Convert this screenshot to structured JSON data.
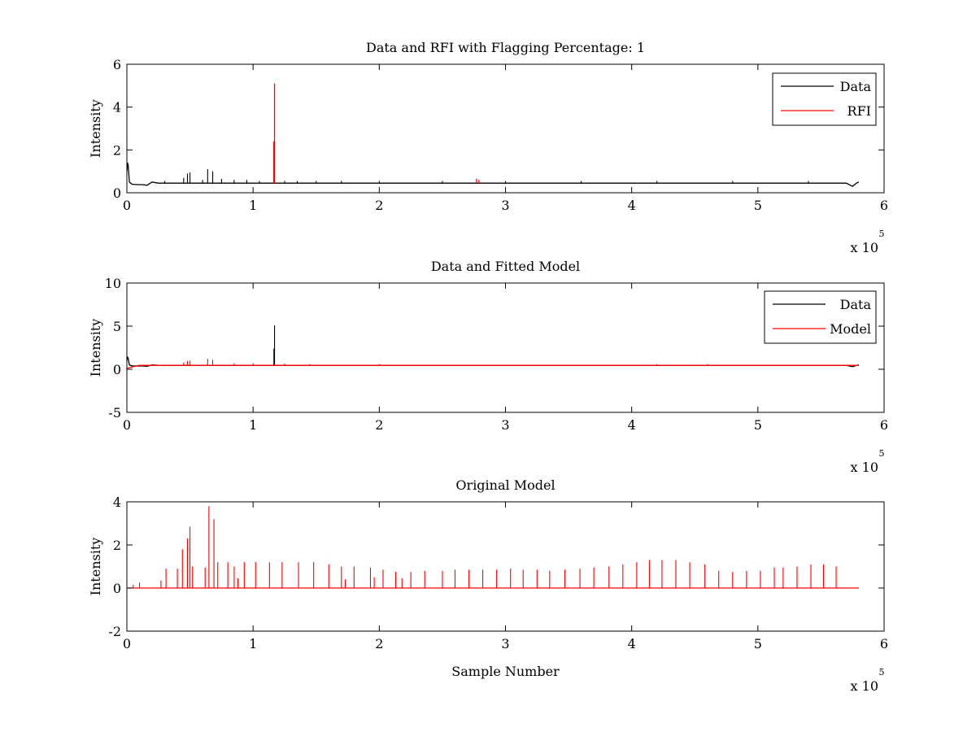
{
  "chart_data": [
    {
      "type": "line",
      "title": "Data and RFI with Flagging Percentage: 1",
      "xlabel": "",
      "ylabel": "Intensity",
      "x_exponent_base": "x 10",
      "x_exponent": "5",
      "xlim": [
        0,
        6
      ],
      "ylim": [
        0,
        6
      ],
      "xticks": [
        "0",
        "1",
        "2",
        "3",
        "4",
        "5",
        "6"
      ],
      "yticks": [
        "0",
        "2",
        "4",
        "6"
      ],
      "grid": false,
      "legend_position": "top-right",
      "series": [
        {
          "name": "Data",
          "color": "#000000",
          "baseline": 0.45,
          "x": [
            0,
            0.005,
            0.01,
            0.015,
            0.02,
            0.04,
            0.08,
            0.12,
            0.16,
            0.2,
            0.25,
            0.3,
            5.7,
            5.75,
            5.78,
            5.8
          ],
          "y": [
            1.0,
            1.4,
            1.3,
            0.9,
            0.5,
            0.4,
            0.38,
            0.38,
            0.35,
            0.5,
            0.45,
            0.45,
            0.45,
            0.3,
            0.45,
            0.5
          ],
          "spikes": [
            {
              "x": 0.3,
              "y": 0.55
            },
            {
              "x": 0.45,
              "y": 0.7
            },
            {
              "x": 0.48,
              "y": 0.9
            },
            {
              "x": 0.5,
              "y": 0.95
            },
            {
              "x": 0.6,
              "y": 0.6
            },
            {
              "x": 0.64,
              "y": 1.1
            },
            {
              "x": 0.68,
              "y": 1.0
            },
            {
              "x": 0.75,
              "y": 0.65
            },
            {
              "x": 0.85,
              "y": 0.6
            },
            {
              "x": 0.95,
              "y": 0.6
            },
            {
              "x": 1.05,
              "y": 0.55
            },
            {
              "x": 1.25,
              "y": 0.55
            },
            {
              "x": 1.35,
              "y": 0.55
            },
            {
              "x": 1.5,
              "y": 0.55
            },
            {
              "x": 1.7,
              "y": 0.55
            },
            {
              "x": 2.0,
              "y": 0.55
            },
            {
              "x": 2.5,
              "y": 0.55
            },
            {
              "x": 3.0,
              "y": 0.55
            },
            {
              "x": 3.6,
              "y": 0.55
            },
            {
              "x": 4.2,
              "y": 0.55
            },
            {
              "x": 4.8,
              "y": 0.55
            },
            {
              "x": 5.4,
              "y": 0.55
            }
          ]
        },
        {
          "name": "RFI",
          "color": "#ff0000",
          "bars": [
            {
              "x": 1.165,
              "width": 0.01,
              "y": 2.4
            },
            {
              "x": 1.17,
              "y": 5.1
            },
            {
              "x": 2.77,
              "y": 0.65
            },
            {
              "x": 2.79,
              "y": 0.6
            }
          ]
        }
      ]
    },
    {
      "type": "line",
      "title": "Data and Fitted Model",
      "xlabel": "",
      "ylabel": "Intensity",
      "x_exponent_base": "x 10",
      "x_exponent": "5",
      "xlim": [
        0,
        6
      ],
      "ylim": [
        -5,
        10
      ],
      "xticks": [
        "0",
        "1",
        "2",
        "3",
        "4",
        "5",
        "6"
      ],
      "yticks": [
        "-5",
        "0",
        "5",
        "10"
      ],
      "grid": false,
      "legend_position": "top-right",
      "series": [
        {
          "name": "Data",
          "color": "#000000",
          "baseline": 0.45,
          "x": [
            0,
            0.005,
            0.01,
            0.015,
            0.02,
            0.04,
            0.08,
            0.12,
            0.16,
            0.2,
            0.25,
            0.3,
            5.7,
            5.75,
            5.78,
            5.8
          ],
          "y": [
            1.0,
            1.4,
            1.3,
            0.9,
            0.5,
            0.4,
            0.38,
            0.38,
            0.35,
            0.5,
            0.45,
            0.45,
            0.45,
            0.3,
            0.45,
            0.5
          ],
          "spikes": [
            {
              "x": 1.165,
              "y": 2.4
            },
            {
              "x": 1.17,
              "y": 5.1
            }
          ]
        },
        {
          "name": "Model",
          "color": "#ff0000",
          "baseline": 0.45,
          "x": [
            0,
            0.05,
            0.1,
            5.8
          ],
          "y": [
            0.1,
            0.3,
            0.45,
            0.45
          ],
          "spikes": [
            {
              "x": 0.45,
              "y": 0.8
            },
            {
              "x": 0.48,
              "y": 0.95
            },
            {
              "x": 0.5,
              "y": 1.0
            },
            {
              "x": 0.64,
              "y": 1.2
            },
            {
              "x": 0.68,
              "y": 1.1
            },
            {
              "x": 0.85,
              "y": 0.7
            },
            {
              "x": 1.0,
              "y": 0.7
            },
            {
              "x": 1.25,
              "y": 0.65
            },
            {
              "x": 1.45,
              "y": 0.6
            },
            {
              "x": 2.0,
              "y": 0.6
            },
            {
              "x": 4.2,
              "y": 0.6
            },
            {
              "x": 4.6,
              "y": 0.6
            }
          ]
        }
      ]
    },
    {
      "type": "line",
      "title": "Original Model",
      "xlabel": "Sample Number",
      "ylabel": "Intensity",
      "x_exponent_base": "x 10",
      "x_exponent": "5",
      "xlim": [
        0,
        6
      ],
      "ylim": [
        -2,
        4
      ],
      "xticks": [
        "0",
        "1",
        "2",
        "3",
        "4",
        "5",
        "6"
      ],
      "yticks": [
        "-2",
        "0",
        "2",
        "4"
      ],
      "grid": false,
      "legend_position": "none",
      "series": [
        {
          "name": "",
          "color": "#ff0000",
          "baseline": 0,
          "x": [
            0,
            5.8
          ],
          "y": [
            0,
            0
          ],
          "spikes": [
            {
              "x": 0.05,
              "y": 0.15
            },
            {
              "x": 0.1,
              "y": 0.25
            },
            {
              "x": 0.27,
              "y": 0.35
            },
            {
              "x": 0.31,
              "y": 0.9
            },
            {
              "x": 0.4,
              "y": 0.9
            },
            {
              "x": 0.44,
              "y": 1.8
            },
            {
              "x": 0.48,
              "y": 2.3
            },
            {
              "x": 0.5,
              "y": 2.85
            },
            {
              "x": 0.52,
              "y": 1.0
            },
            {
              "x": 0.62,
              "y": 0.95
            },
            {
              "x": 0.65,
              "y": 3.8
            },
            {
              "x": 0.69,
              "y": 3.2
            },
            {
              "x": 0.72,
              "y": 1.2
            },
            {
              "x": 0.8,
              "y": 1.2
            },
            {
              "x": 0.85,
              "y": 1.0
            },
            {
              "x": 0.88,
              "y": 0.45
            },
            {
              "x": 0.93,
              "y": 1.2
            },
            {
              "x": 1.02,
              "y": 1.2
            },
            {
              "x": 1.13,
              "y": 1.2
            },
            {
              "x": 1.23,
              "y": 1.2
            },
            {
              "x": 1.36,
              "y": 1.2
            },
            {
              "x": 1.48,
              "y": 1.2
            },
            {
              "x": 1.6,
              "y": 1.1
            },
            {
              "x": 1.7,
              "y": 1.0
            },
            {
              "x": 1.73,
              "y": 0.4
            },
            {
              "x": 1.8,
              "y": 1.0
            },
            {
              "x": 1.93,
              "y": 0.95
            },
            {
              "x": 1.96,
              "y": 0.5
            },
            {
              "x": 2.03,
              "y": 0.85
            },
            {
              "x": 2.13,
              "y": 0.75
            },
            {
              "x": 2.18,
              "y": 0.45
            },
            {
              "x": 2.25,
              "y": 0.75
            },
            {
              "x": 2.36,
              "y": 0.8
            },
            {
              "x": 2.5,
              "y": 0.8
            },
            {
              "x": 2.6,
              "y": 0.85
            },
            {
              "x": 2.71,
              "y": 0.85
            },
            {
              "x": 2.82,
              "y": 0.85
            },
            {
              "x": 2.93,
              "y": 0.85
            },
            {
              "x": 3.04,
              "y": 0.9
            },
            {
              "x": 3.14,
              "y": 0.85
            },
            {
              "x": 3.25,
              "y": 0.85
            },
            {
              "x": 3.35,
              "y": 0.8
            },
            {
              "x": 3.47,
              "y": 0.85
            },
            {
              "x": 3.59,
              "y": 0.9
            },
            {
              "x": 3.7,
              "y": 0.95
            },
            {
              "x": 3.82,
              "y": 1.0
            },
            {
              "x": 3.93,
              "y": 1.1
            },
            {
              "x": 4.04,
              "y": 1.2
            },
            {
              "x": 4.14,
              "y": 1.3
            },
            {
              "x": 4.24,
              "y": 1.3
            },
            {
              "x": 4.35,
              "y": 1.3
            },
            {
              "x": 4.46,
              "y": 1.2
            },
            {
              "x": 4.58,
              "y": 1.1
            },
            {
              "x": 4.69,
              "y": 0.8
            },
            {
              "x": 4.8,
              "y": 0.75
            },
            {
              "x": 4.91,
              "y": 0.8
            },
            {
              "x": 5.02,
              "y": 0.8
            },
            {
              "x": 5.13,
              "y": 0.95
            },
            {
              "x": 5.2,
              "y": 0.95
            },
            {
              "x": 5.31,
              "y": 1.0
            },
            {
              "x": 5.42,
              "y": 1.1
            },
            {
              "x": 5.52,
              "y": 1.1
            },
            {
              "x": 5.62,
              "y": 1.0
            }
          ]
        }
      ]
    }
  ]
}
